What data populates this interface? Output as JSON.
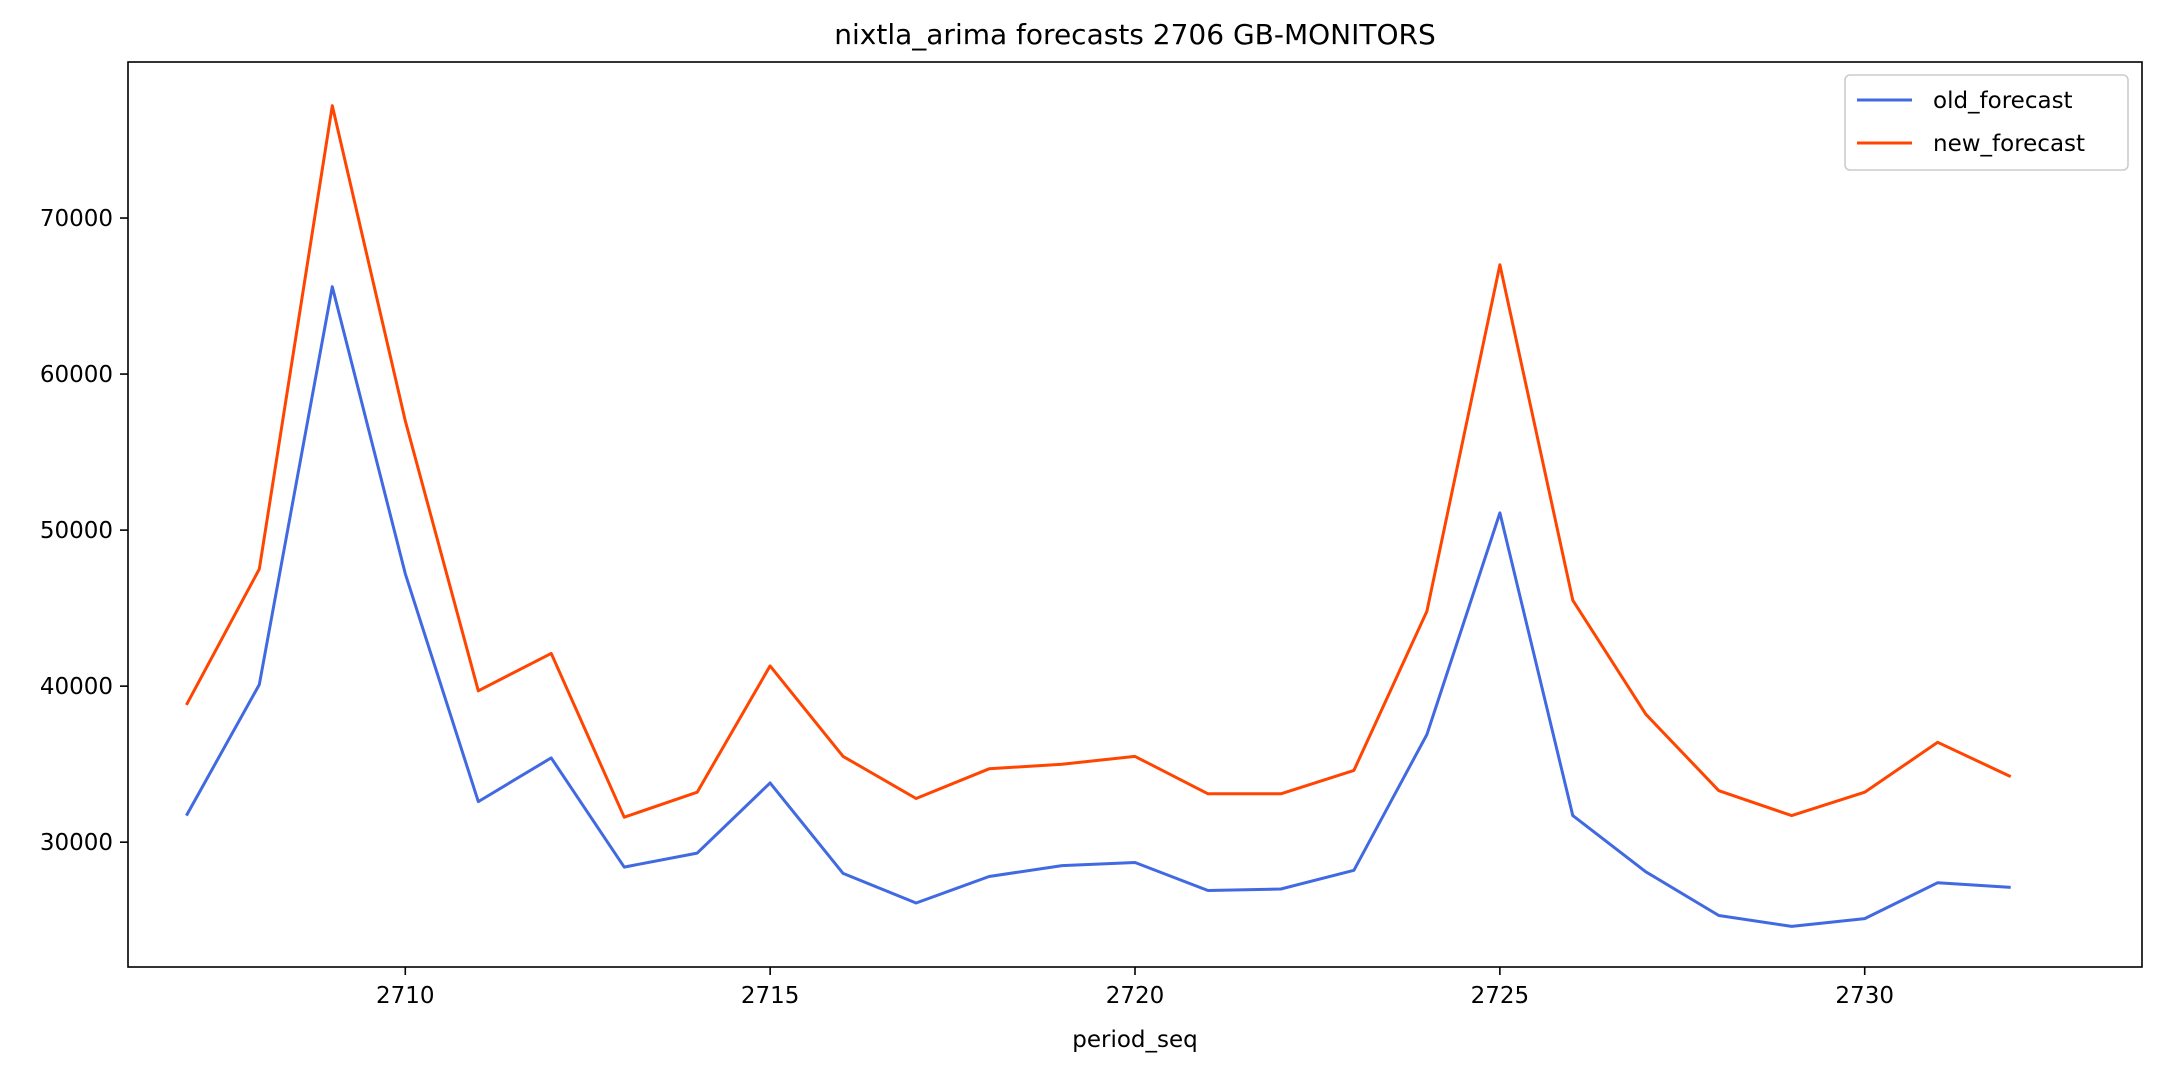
{
  "chart_data": {
    "type": "line",
    "title": "nixtla_arima forecasts 2706 GB-MONITORS",
    "xlabel": "period_seq",
    "ylabel": "",
    "x": [
      2707,
      2708,
      2709,
      2710,
      2711,
      2712,
      2713,
      2714,
      2715,
      2716,
      2717,
      2718,
      2719,
      2720,
      2721,
      2722,
      2723,
      2724,
      2725,
      2726,
      2727,
      2728,
      2729,
      2730,
      2731,
      2732
    ],
    "series": [
      {
        "name": "old_forecast",
        "color": "#4169e1",
        "values": [
          31700,
          40100,
          65600,
          47200,
          32600,
          35400,
          28400,
          29300,
          33800,
          28000,
          26100,
          27800,
          28500,
          28700,
          26900,
          27000,
          28200,
          36900,
          51100,
          31700,
          28100,
          25300,
          24600,
          25100,
          27400,
          27100
        ]
      },
      {
        "name": "new_forecast",
        "color": "#ff4500",
        "values": [
          38800,
          47500,
          77200,
          57000,
          39700,
          42100,
          31600,
          33200,
          41300,
          35500,
          32800,
          34700,
          35000,
          35500,
          33100,
          33100,
          34600,
          44800,
          67000,
          45500,
          38200,
          33300,
          31700,
          33200,
          36400,
          34200
        ]
      }
    ],
    "xlim": [
      2706.2,
      2733.8
    ],
    "ylim": [
      22000,
      80000
    ],
    "xticks": [
      2710,
      2715,
      2720,
      2725,
      2730
    ],
    "yticks": [
      30000,
      40000,
      50000,
      60000,
      70000
    ],
    "legend": {
      "position": "top-right",
      "entries": [
        "old_forecast",
        "new_forecast"
      ]
    },
    "grid": false
  }
}
